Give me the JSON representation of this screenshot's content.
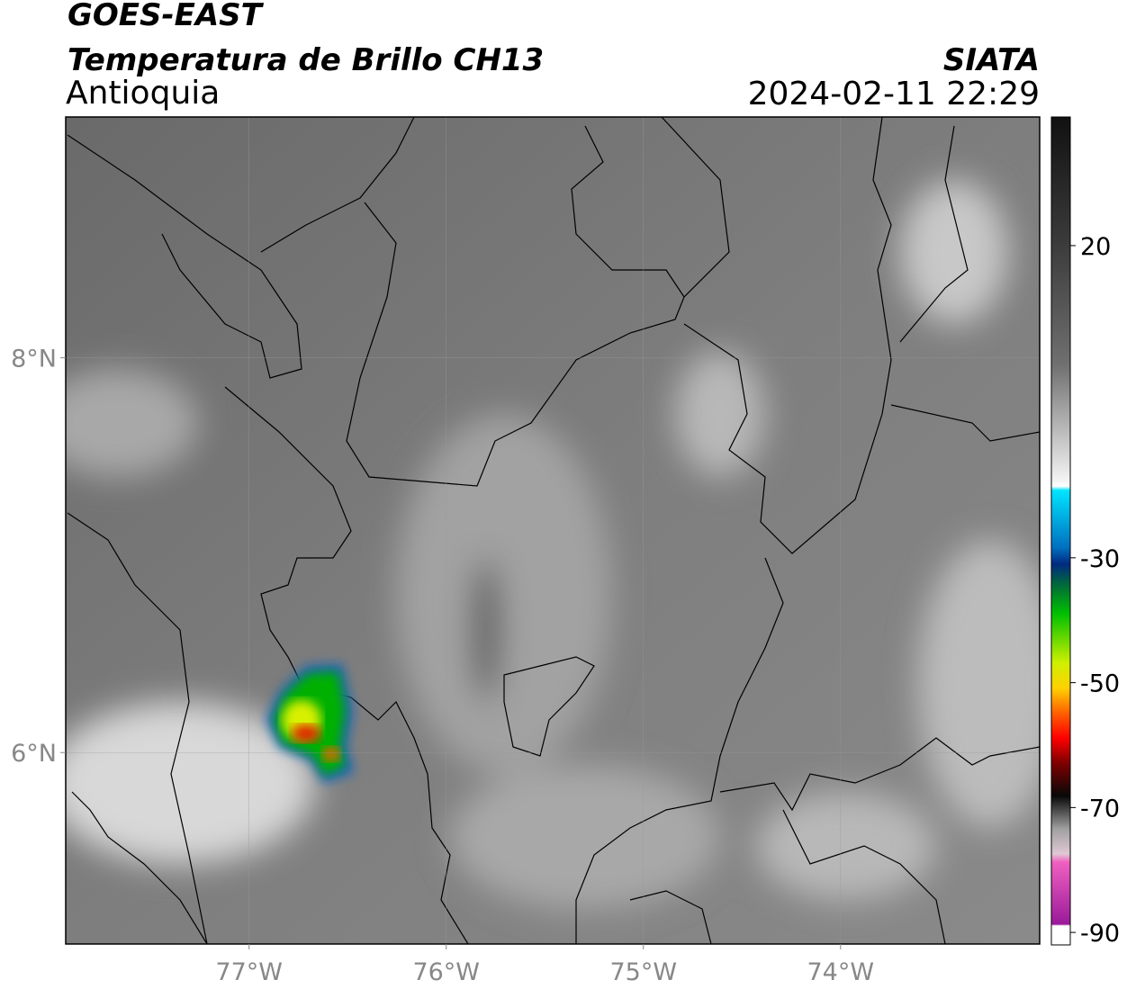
{
  "chart_data": {
    "type": "map",
    "title": "GOES-EAST",
    "subtitle": "Temperatura de Brillo CH13",
    "region": "Antioquia",
    "source": "SIATA",
    "datetime": "2024-02-11 22:29",
    "xlim": [
      -77.93,
      -72.99
    ],
    "ylim": [
      5.03,
      9.22
    ],
    "xticks": [
      {
        "value": -77,
        "label": "77°W"
      },
      {
        "value": -76,
        "label": "76°W"
      },
      {
        "value": -75,
        "label": "75°W"
      },
      {
        "value": -74,
        "label": "74°W"
      }
    ],
    "yticks": [
      {
        "value": 6,
        "label": "6°N"
      },
      {
        "value": 8,
        "label": "8°N"
      }
    ],
    "grid": true,
    "colorbar": {
      "lim": [
        -92,
        40.6
      ],
      "ticks": [
        20,
        -30,
        -50,
        -70,
        -90
      ]
    }
  }
}
